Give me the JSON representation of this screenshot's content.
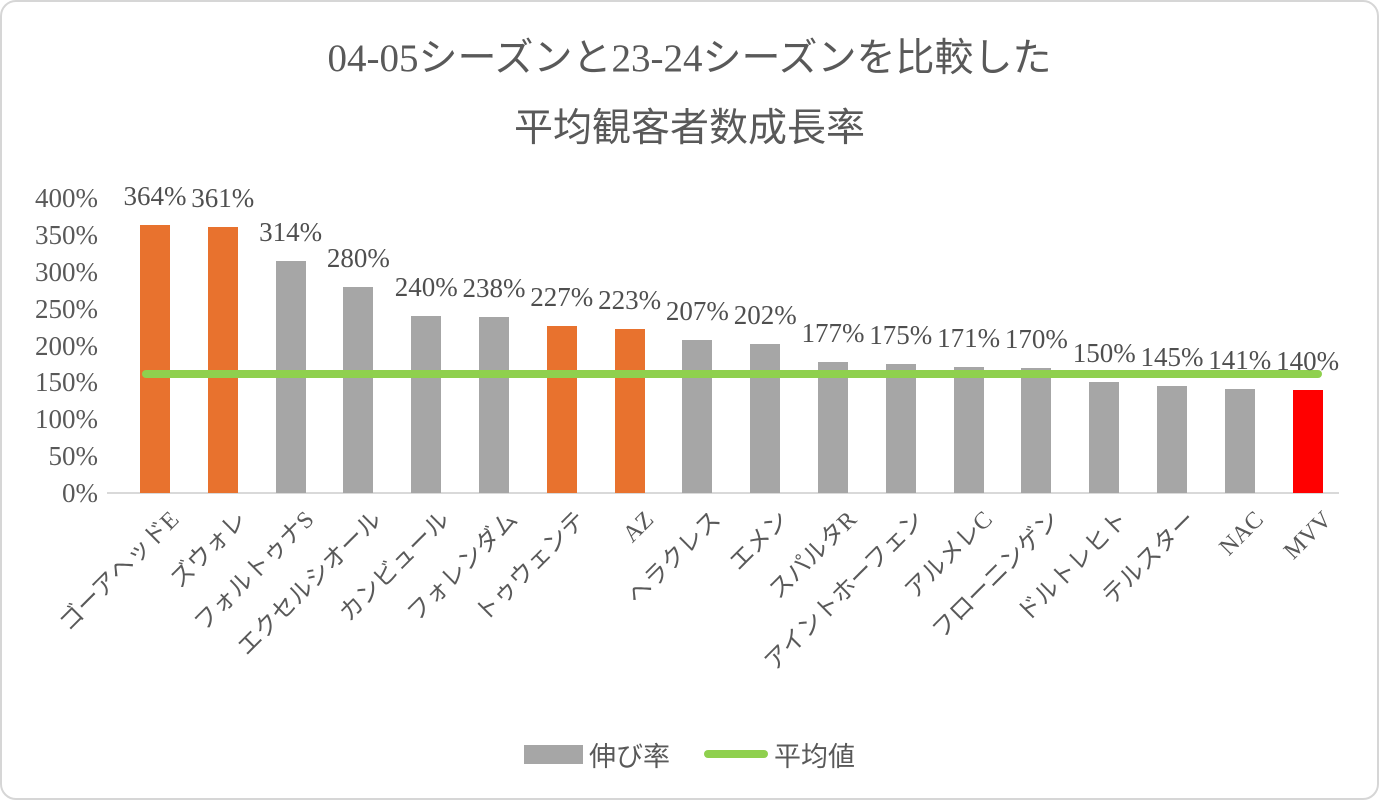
{
  "title": {
    "line1": "04-05シーズンと23-24シーズンを比較した",
    "line2": "平均観客者数成長率"
  },
  "colors": {
    "bar_default": "#a6a6a6",
    "bar_highlight": "#e8722e",
    "bar_lowest": "#ff0000",
    "average_line": "#8fd04e",
    "text": "#595959",
    "axis_line": "#d9d9d9"
  },
  "legend": {
    "series_label": "伸び率",
    "average_label": "平均値"
  },
  "chart_data": {
    "type": "bar",
    "title": "04-05シーズンと23-24シーズンを比較した平均観客者数成長率",
    "categories": [
      "ゴーアヘッドE",
      "ズウォレ",
      "フォルトゥナS",
      "エクセルシオール",
      "カンビュール",
      "フォレンダム",
      "トゥウェンテ",
      "AZ",
      "ヘラクレス",
      "エメン",
      "スパルタR",
      "アイントホーフェン",
      "アルメレC",
      "フローニンゲン",
      "ドルトレヒト",
      "テルスター",
      "NAC",
      "MVV"
    ],
    "values": [
      364,
      361,
      314,
      280,
      240,
      238,
      227,
      223,
      207,
      202,
      177,
      175,
      171,
      170,
      150,
      145,
      141,
      140
    ],
    "value_labels": [
      "364%",
      "361%",
      "314%",
      "280%",
      "240%",
      "238%",
      "227%",
      "223%",
      "207%",
      "202%",
      "177%",
      "175%",
      "171%",
      "170%",
      "150%",
      "145%",
      "141%",
      "140%"
    ],
    "bar_roles": [
      "highlight",
      "highlight",
      "default",
      "default",
      "default",
      "default",
      "highlight",
      "highlight",
      "default",
      "default",
      "default",
      "default",
      "default",
      "default",
      "default",
      "default",
      "default",
      "lowest"
    ],
    "series_name": "伸び率",
    "average_line": {
      "name": "平均値",
      "value": 162
    },
    "yticks": [
      "400%",
      "350%",
      "300%",
      "250%",
      "200%",
      "150%",
      "100%",
      "50%",
      "0%"
    ],
    "ylim": [
      0,
      400
    ],
    "grid": false,
    "legend_position": "bottom"
  }
}
